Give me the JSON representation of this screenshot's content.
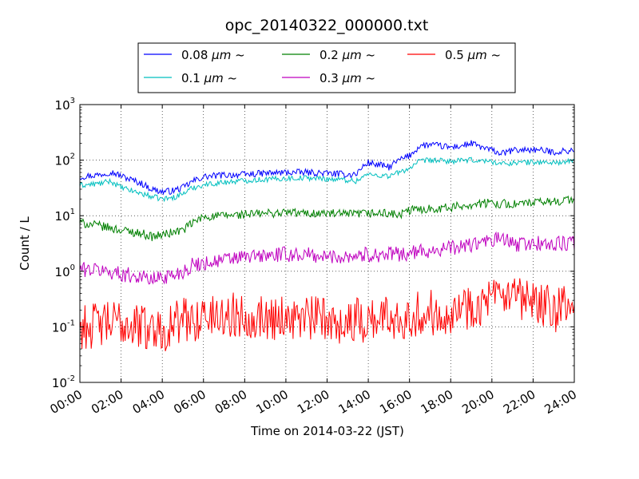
{
  "chart_data": {
    "type": "line",
    "title": "opc_20140322_000000.txt",
    "xlabel": "Time on 2014-03-22 (JST)",
    "ylabel": "Count / L",
    "x_range_hours": [
      0,
      24
    ],
    "x_ticks": [
      "00:00",
      "02:00",
      "04:00",
      "06:00",
      "08:00",
      "10:00",
      "12:00",
      "14:00",
      "16:00",
      "18:00",
      "20:00",
      "22:00",
      "24:00"
    ],
    "y_scale": "log",
    "ylim": [
      0.01,
      1000
    ],
    "y_ticks": [
      {
        "base": "10",
        "exp": "-2"
      },
      {
        "base": "10",
        "exp": "-1"
      },
      {
        "base": "10",
        "exp": "0"
      },
      {
        "base": "10",
        "exp": "1"
      },
      {
        "base": "10",
        "exp": "2"
      },
      {
        "base": "10",
        "exp": "3"
      }
    ],
    "grid": true,
    "legend_position": "top-center, above plot",
    "series": [
      {
        "name": "0.08 μm ~",
        "label_main": "0.08 ",
        "label_unit": "μm",
        "label_tail": " ~",
        "color": "#0000ff",
        "x_hours": [
          0,
          1,
          1.5,
          2,
          3,
          3.5,
          4,
          4.5,
          5,
          5.5,
          6,
          7,
          8,
          9,
          10,
          11,
          12,
          13,
          13.4,
          13.8,
          14,
          15,
          15.5,
          16,
          16.5,
          17,
          18,
          18.5,
          19,
          19.5,
          20,
          20.5,
          21,
          22,
          23,
          24
        ],
        "values": [
          50,
          55,
          62,
          52,
          38,
          30,
          27,
          28,
          32,
          42,
          50,
          54,
          55,
          58,
          60,
          60,
          58,
          55,
          56,
          80,
          90,
          75,
          100,
          120,
          180,
          190,
          170,
          180,
          200,
          170,
          150,
          130,
          150,
          155,
          140,
          150
        ],
        "noise": 0.06
      },
      {
        "name": "0.1 μm ~",
        "label_main": "0.1 ",
        "label_unit": "μm",
        "label_tail": " ~",
        "color": "#00bfbf",
        "x_hours": [
          0,
          1,
          1.5,
          2,
          3,
          3.5,
          4,
          4.5,
          5,
          5.5,
          6,
          7,
          8,
          9,
          10,
          11,
          12,
          13,
          13.4,
          13.8,
          14,
          15,
          15.5,
          16,
          16.5,
          17,
          18,
          19,
          20,
          20.5,
          21,
          22,
          23,
          24
        ],
        "values": [
          35,
          38,
          42,
          32,
          25,
          22,
          20,
          21,
          25,
          32,
          36,
          40,
          43,
          45,
          47,
          48,
          46,
          44,
          42,
          52,
          55,
          52,
          60,
          72,
          95,
          100,
          95,
          100,
          95,
          85,
          90,
          92,
          90,
          95
        ],
        "noise": 0.05
      },
      {
        "name": "0.2 μm ~",
        "label_main": "0.2 ",
        "label_unit": "μm",
        "label_tail": " ~",
        "color": "#008000",
        "x_hours": [
          0,
          1,
          2,
          3,
          3.5,
          4,
          4.5,
          5,
          5.5,
          6,
          7,
          8,
          9,
          10,
          11,
          12,
          13,
          14,
          15,
          15.5,
          16,
          17,
          18,
          19,
          20,
          21,
          22,
          23,
          24
        ],
        "values": [
          7.5,
          6.5,
          5.5,
          4.8,
          4.2,
          4.5,
          5,
          5.5,
          7.5,
          9.5,
          10,
          10.5,
          11,
          11.5,
          11,
          11,
          10.5,
          11,
          11,
          10,
          12.5,
          13.5,
          14,
          16,
          17,
          16,
          17,
          18,
          20
        ],
        "noise": 0.08
      },
      {
        "name": "0.3 μm ~",
        "label_main": "0.3 ",
        "label_unit": "μm",
        "label_tail": " ~",
        "color": "#bf00bf",
        "x_hours": [
          0,
          1,
          2,
          3,
          3.5,
          4,
          4.5,
          5,
          5.5,
          6,
          7,
          8,
          9,
          10,
          11,
          12,
          13,
          14,
          15,
          16,
          17,
          18,
          19,
          20,
          20.5,
          21,
          22,
          23,
          24
        ],
        "values": [
          1.1,
          1.05,
          0.9,
          0.8,
          0.7,
          0.8,
          0.85,
          1.0,
          1.3,
          1.4,
          1.6,
          1.8,
          1.9,
          2.0,
          2.0,
          1.8,
          1.9,
          2.0,
          2.0,
          2.1,
          2.4,
          2.6,
          3.0,
          3.5,
          4.0,
          3.0,
          3.2,
          3.0,
          3.3
        ],
        "noise": 0.14
      },
      {
        "name": "0.5 μm ~",
        "label_main": "0.5 ",
        "label_unit": "μm",
        "label_tail": " ~",
        "color": "#ff0000",
        "x_hours": [
          0,
          1,
          2,
          3,
          4,
          5,
          6,
          7,
          8,
          9,
          10,
          11,
          12,
          13,
          14,
          15,
          16,
          17,
          18,
          19,
          20,
          21,
          22,
          23,
          24
        ],
        "values": [
          0.1,
          0.11,
          0.12,
          0.1,
          0.09,
          0.13,
          0.15,
          0.16,
          0.16,
          0.15,
          0.15,
          0.14,
          0.14,
          0.12,
          0.14,
          0.15,
          0.16,
          0.18,
          0.2,
          0.24,
          0.3,
          0.3,
          0.26,
          0.2,
          0.22
        ],
        "noise": 0.42
      }
    ]
  }
}
